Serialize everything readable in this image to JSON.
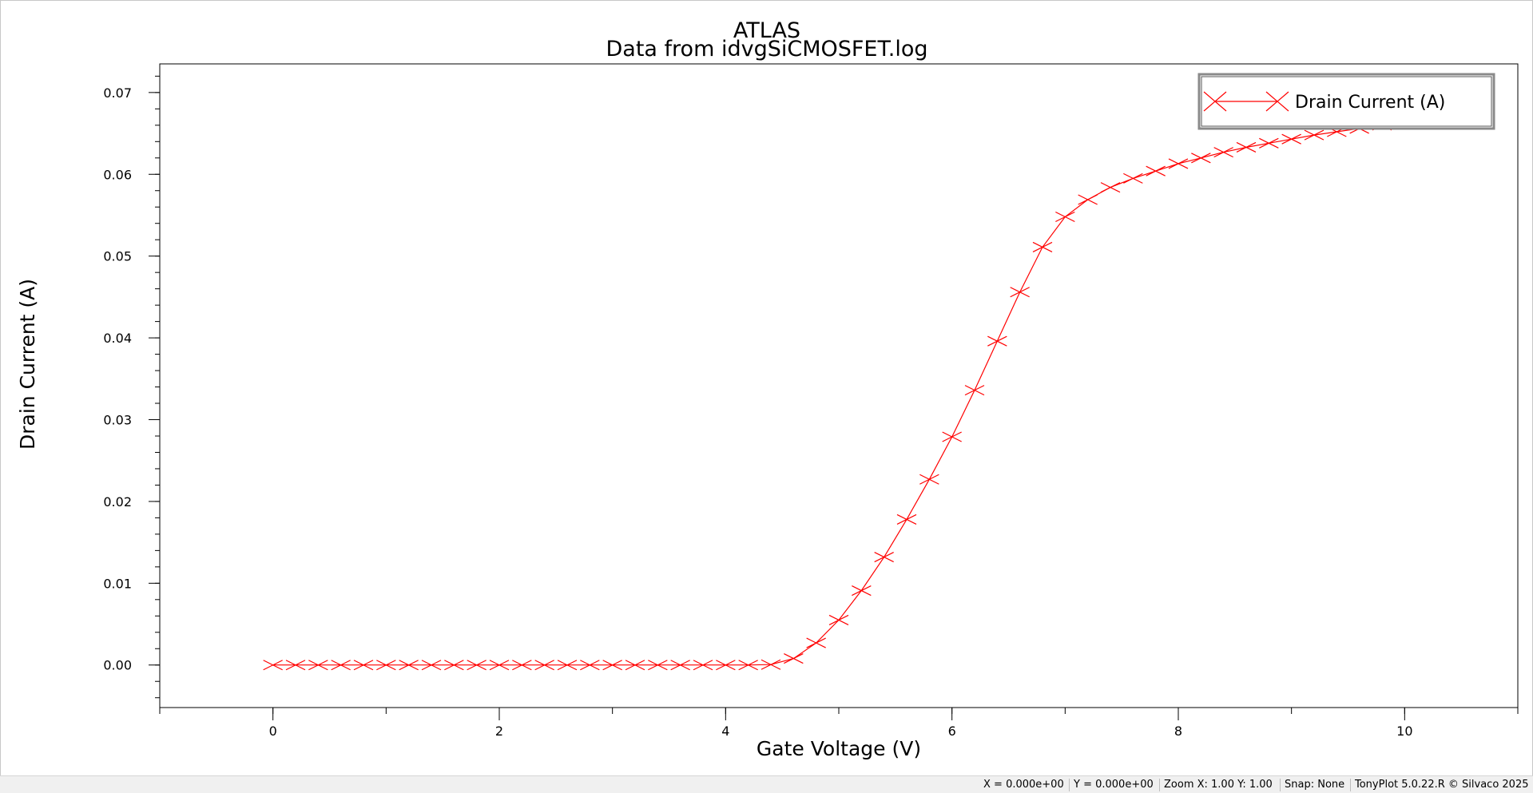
{
  "chart_data": {
    "type": "line",
    "title": "ATLAS",
    "subtitle": "Data from idvgSiCMOSFET.log",
    "xlabel": "Gate Voltage (V)",
    "ylabel": "Drain Current (A)",
    "xlim": [
      -1.0,
      11.0
    ],
    "ylim": [
      -0.0052,
      0.0735
    ],
    "x_ticks": [
      0,
      2,
      4,
      6,
      8,
      10
    ],
    "x_tick_labels": [
      "0",
      "2",
      "4",
      "6",
      "8",
      "10"
    ],
    "y_ticks": [
      0.0,
      0.01,
      0.02,
      0.03,
      0.04,
      0.05,
      0.06,
      0.07
    ],
    "y_tick_labels": [
      "0.00",
      "0.01",
      "0.02",
      "0.03",
      "0.04",
      "0.05",
      "0.06",
      "0.07"
    ],
    "grid": false,
    "legend_position": "top-right",
    "series": [
      {
        "name": "Drain Current (A)",
        "color": "#ff0000",
        "marker": "x",
        "x": [
          0,
          0.2,
          0.4,
          0.6,
          0.8,
          1.0,
          1.2,
          1.4,
          1.6,
          1.8,
          2.0,
          2.2,
          2.4,
          2.6,
          2.8,
          3.0,
          3.2,
          3.4,
          3.6,
          3.8,
          4.0,
          4.2,
          4.4,
          4.6,
          4.8,
          5.0,
          5.2,
          5.4,
          5.6,
          5.8,
          6.0,
          6.2,
          6.4,
          6.6,
          6.8,
          7.0,
          7.2,
          7.4,
          7.6,
          7.8,
          8.0,
          8.2,
          8.4,
          8.6,
          8.8,
          9.0,
          9.2,
          9.4,
          9.6,
          9.8,
          10.0
        ],
        "y": [
          0.0,
          0.0,
          0.0,
          0.0,
          0.0,
          0.0,
          0.0,
          0.0,
          0.0,
          0.0,
          0.0,
          0.0,
          0.0,
          0.0,
          0.0,
          0.0,
          0.0,
          0.0,
          0.0,
          0.0,
          0.0,
          0.0,
          5e-05,
          0.0008,
          0.0027,
          0.0055,
          0.0091,
          0.0132,
          0.0178,
          0.0227,
          0.0279,
          0.0336,
          0.0396,
          0.0456,
          0.0511,
          0.0548,
          0.0569,
          0.0584,
          0.0595,
          0.0604,
          0.0613,
          0.062,
          0.0627,
          0.0633,
          0.0638,
          0.0643,
          0.0648,
          0.0652,
          0.0656,
          0.066,
          0.0663
        ]
      }
    ]
  },
  "statusbar": {
    "coord_x": "X = 0.000e+00",
    "coord_y": "Y = 0.000e+00",
    "zoom": "Zoom X: 1.00 Y: 1.00",
    "snap": "Snap: None",
    "version": "TonyPlot 5.0.22.R © Silvaco 2025"
  }
}
